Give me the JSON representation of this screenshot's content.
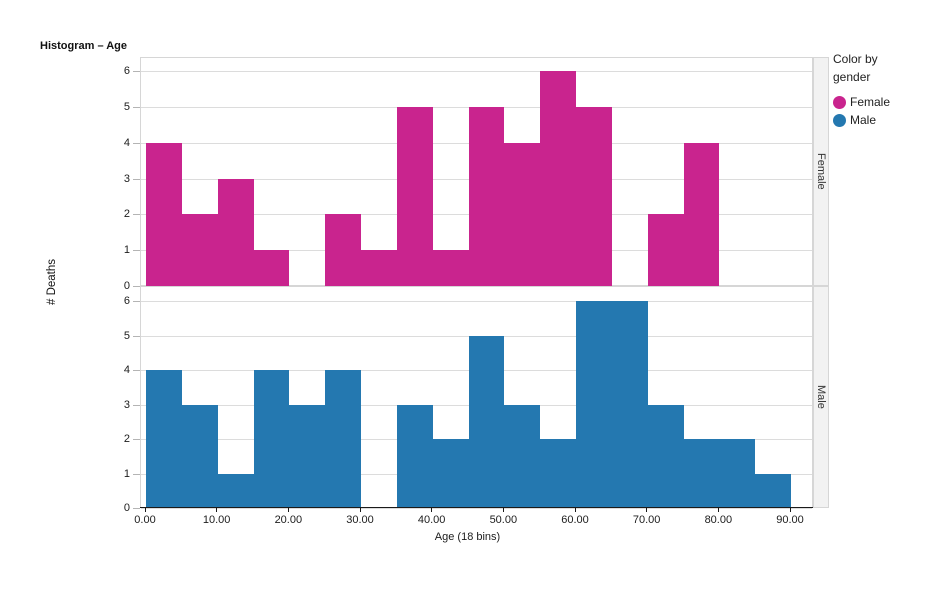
{
  "title": "Histogram – Age",
  "y_axis_title": "# Deaths",
  "x_axis_title": "Age (18 bins)",
  "legend": {
    "title_lines": [
      "Color by",
      "gender"
    ],
    "items": [
      {
        "label": "Female",
        "color": "#c9248e"
      },
      {
        "label": "Male",
        "color": "#2478b0"
      }
    ]
  },
  "panels": [
    {
      "label": "Female"
    },
    {
      "label": "Male"
    }
  ],
  "colors": {
    "female_bar": "#c9248e",
    "male_bar": "#2478b0",
    "gridline": "#dcdcdc",
    "panel_border": "#d6d6d6",
    "strip_background": "#f2f2f2",
    "axis_line": "#1a1a1a"
  },
  "chart_data": {
    "type": "bar",
    "subtype": "histogram-trellised",
    "title": "Histogram – Age",
    "xlabel": "Age (18 bins)",
    "ylabel": "# Deaths",
    "xlim": [
      0,
      90
    ],
    "ylim": [
      0,
      6
    ],
    "grid": true,
    "legend_position": "top-right",
    "bin_width": 5,
    "bin_edges": [
      0,
      5,
      10,
      15,
      20,
      25,
      30,
      35,
      40,
      45,
      50,
      55,
      60,
      65,
      70,
      75,
      80,
      85,
      90
    ],
    "x_tick_values": [
      0,
      10,
      20,
      30,
      40,
      50,
      60,
      70,
      80,
      90
    ],
    "x_tick_labels": [
      "0.00",
      "10.00",
      "20.00",
      "30.00",
      "40.00",
      "50.00",
      "60.00",
      "70.00",
      "80.00",
      "90.00"
    ],
    "y_tick_labels": [
      "0",
      "1",
      "2",
      "3",
      "4",
      "5",
      "6"
    ],
    "series": [
      {
        "name": "Female",
        "color": "#c9248e",
        "values": [
          4,
          2,
          3,
          1,
          0,
          2,
          1,
          5,
          1,
          5,
          4,
          6,
          5,
          0,
          2,
          4,
          0,
          0
        ]
      },
      {
        "name": "Male",
        "color": "#2478b0",
        "values": [
          4,
          3,
          1,
          4,
          3,
          4,
          0,
          3,
          2,
          5,
          3,
          2,
          6,
          6,
          3,
          2,
          2,
          1
        ]
      }
    ]
  }
}
